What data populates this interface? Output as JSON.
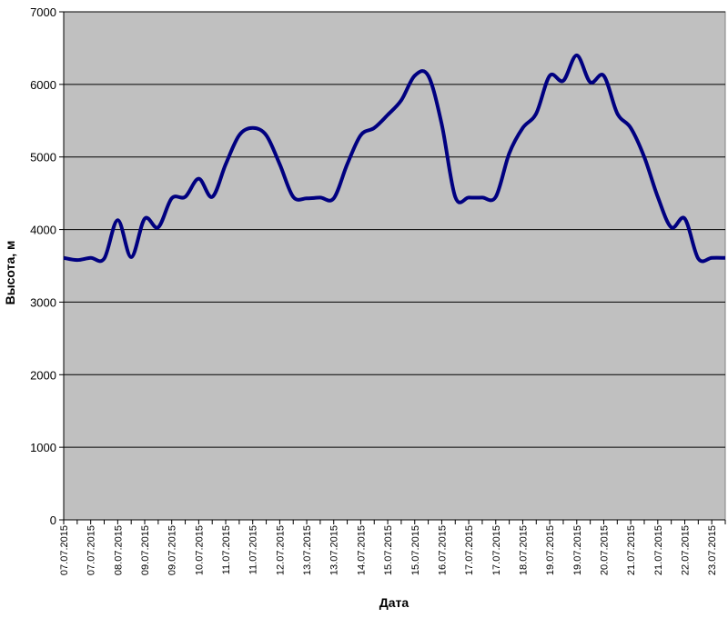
{
  "chart_data": {
    "type": "line",
    "x_label": "Дата",
    "y_label": "Высота, м",
    "categories": [
      "07.07.2015",
      null,
      "07.07.2015",
      null,
      "08.07.2015",
      null,
      "09.07.2015",
      null,
      "09.07.2015",
      null,
      "10.07.2015",
      null,
      "11.07.2015",
      null,
      "11.07.2015",
      null,
      "12.07.2015",
      null,
      "13.07.2015",
      null,
      "13.07.2015",
      null,
      "14.07.2015",
      null,
      "15.07.2015",
      null,
      "15.07.2015",
      null,
      "16.07.2015",
      null,
      "17.07.2015",
      null,
      "17.07.2015",
      null,
      "18.07.2015",
      null,
      "19.07.2015",
      null,
      "19.07.2015",
      null,
      "20.07.2015",
      null,
      "21.07.2015",
      null,
      "21.07.2015",
      null,
      "22.07.2015",
      null,
      "23.07.2015",
      null
    ],
    "series": [
      {
        "color": "#000080",
        "values": [
          3610,
          3580,
          3610,
          3600,
          4130,
          3620,
          4150,
          4030,
          4430,
          4450,
          4700,
          4450,
          4900,
          5300,
          5400,
          5300,
          4900,
          4450,
          4430,
          4440,
          4430,
          4900,
          5300,
          5400,
          5580,
          5780,
          6120,
          6120,
          5450,
          4450,
          4440,
          4440,
          4450,
          5050,
          5400,
          5600,
          6120,
          6050,
          6400,
          6030,
          6120,
          5600,
          5400,
          5000,
          4450,
          4030,
          4150,
          3600,
          3610,
          3610
        ]
      }
    ],
    "ylim": [
      0,
      7000
    ],
    "yticks": [
      0,
      1000,
      2000,
      3000,
      4000,
      5000,
      6000,
      7000
    ],
    "grid": true,
    "background": "#c0c0c0"
  }
}
